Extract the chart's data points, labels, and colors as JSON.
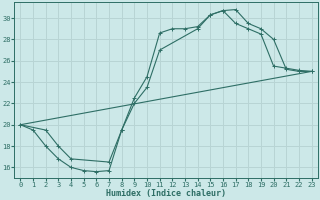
{
  "title": "",
  "xlabel": "Humidex (Indice chaleur)",
  "bg_color": "#cce8e8",
  "grid_color": "#aacccc",
  "line_color": "#2e6e65",
  "xlim": [
    -0.5,
    23.5
  ],
  "ylim": [
    15.0,
    31.5
  ],
  "xticks": [
    0,
    1,
    2,
    3,
    4,
    5,
    6,
    7,
    8,
    9,
    10,
    11,
    12,
    13,
    14,
    15,
    16,
    17,
    18,
    19,
    20,
    21,
    22,
    23
  ],
  "yticks": [
    16,
    18,
    20,
    22,
    24,
    26,
    28,
    30
  ],
  "curve1_x": [
    0,
    1,
    2,
    3,
    4,
    5,
    6,
    7,
    8,
    9,
    10,
    11,
    12,
    13,
    14,
    15,
    16,
    17,
    18,
    19,
    20,
    21,
    22,
    23
  ],
  "curve1_y": [
    20.0,
    19.5,
    18.0,
    16.8,
    16.0,
    15.7,
    15.6,
    15.7,
    19.5,
    22.5,
    24.5,
    28.6,
    29.0,
    29.0,
    29.2,
    30.3,
    30.7,
    30.8,
    29.5,
    29.0,
    28.0,
    25.2,
    25.0,
    25.0
  ],
  "curve2_x": [
    0,
    2,
    3,
    4,
    7,
    8,
    9,
    10,
    11,
    14,
    15,
    16,
    17,
    18,
    19,
    20,
    21,
    22,
    23
  ],
  "curve2_y": [
    20.0,
    19.5,
    18.0,
    16.8,
    16.5,
    19.5,
    22.0,
    23.5,
    27.0,
    29.0,
    30.3,
    30.7,
    29.5,
    29.0,
    28.5,
    25.5,
    25.3,
    25.1,
    25.0
  ],
  "line3_x": [
    0,
    23
  ],
  "line3_y": [
    20.0,
    25.0
  ],
  "marker_size": 1.8,
  "line_width": 0.8,
  "tick_fontsize": 5.0,
  "xlabel_fontsize": 6.0
}
